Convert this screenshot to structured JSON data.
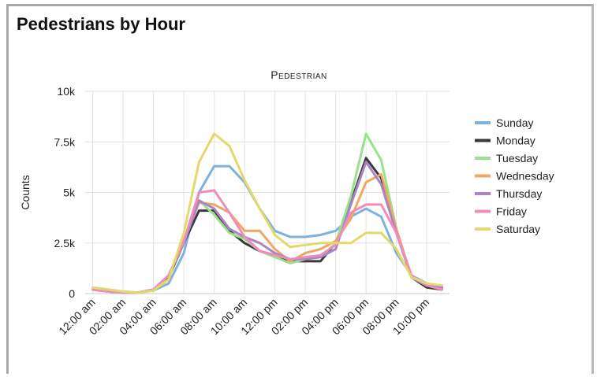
{
  "panel": {
    "title": "Pedestrians by Hour"
  },
  "chart_data": {
    "type": "line",
    "title": "Pedestrian",
    "xlabel": "",
    "ylabel": "Counts",
    "ylim": [
      0,
      10000
    ],
    "yticks": [
      0,
      2500,
      5000,
      7500,
      10000
    ],
    "ytick_labels": [
      "0",
      "2.5k",
      "5k",
      "7.5k",
      "10k"
    ],
    "x": [
      "12:00 am",
      "1:00 am",
      "2:00 am",
      "3:00 am",
      "4:00 am",
      "5:00 am",
      "6:00 am",
      "7:00 am",
      "8:00 am",
      "9:00 am",
      "10:00 am",
      "11:00 am",
      "12:00 pm",
      "1:00 pm",
      "2:00 pm",
      "3:00 pm",
      "4:00 pm",
      "5:00 pm",
      "6:00 pm",
      "7:00 pm",
      "8:00 pm",
      "9:00 pm",
      "10:00 pm",
      "11:00 pm"
    ],
    "xtick_labels": [
      "12:00 am",
      "02:00 am",
      "04:00 am",
      "06:00 am",
      "08:00 am",
      "10:00 am",
      "12:00 pm",
      "02:00 pm",
      "04:00 pm",
      "06:00 pm",
      "08:00 pm",
      "10:00 pm"
    ],
    "grid": true,
    "legend_position": "right",
    "series": [
      {
        "name": "Sunday",
        "color": "#7fb1e0",
        "values": [
          300,
          200,
          100,
          50,
          150,
          500,
          2000,
          5000,
          6300,
          6300,
          5500,
          4200,
          3100,
          2800,
          2800,
          2900,
          3100,
          3800,
          4200,
          3800,
          2000,
          900,
          500,
          300
        ]
      },
      {
        "name": "Monday",
        "color": "#3a3a3e",
        "values": [
          200,
          100,
          50,
          50,
          200,
          800,
          2500,
          4100,
          4100,
          3100,
          2500,
          2100,
          1900,
          1600,
          1600,
          1600,
          2500,
          4500,
          6700,
          5700,
          3000,
          800,
          300,
          200
        ]
      },
      {
        "name": "Tuesday",
        "color": "#98e38a",
        "values": [
          200,
          100,
          50,
          50,
          200,
          900,
          2500,
          4600,
          3900,
          3000,
          2700,
          2100,
          1800,
          1500,
          1700,
          1800,
          2500,
          4800,
          7900,
          6600,
          3200,
          800,
          400,
          300
        ]
      },
      {
        "name": "Wednesday",
        "color": "#f2a664",
        "values": [
          200,
          100,
          50,
          50,
          200,
          900,
          2600,
          4500,
          4400,
          4000,
          3100,
          3100,
          2200,
          1600,
          2000,
          2200,
          2600,
          3700,
          5500,
          5900,
          3200,
          800,
          400,
          300
        ]
      },
      {
        "name": "Thursday",
        "color": "#a985c5",
        "values": [
          200,
          100,
          50,
          50,
          200,
          900,
          2500,
          4600,
          4200,
          3200,
          2800,
          2500,
          2000,
          1700,
          1700,
          1800,
          2200,
          4400,
          6500,
          5400,
          3000,
          800,
          400,
          300
        ]
      },
      {
        "name": "Friday",
        "color": "#ef8cba",
        "values": [
          200,
          100,
          50,
          50,
          200,
          900,
          2600,
          5000,
          5100,
          4000,
          2800,
          2100,
          1900,
          1700,
          1800,
          1900,
          2400,
          4000,
          4400,
          4400,
          3000,
          900,
          400,
          200
        ]
      },
      {
        "name": "Saturday",
        "color": "#e3d96a",
        "values": [
          300,
          200,
          100,
          50,
          150,
          700,
          3000,
          6500,
          7900,
          7300,
          5600,
          4200,
          2900,
          2300,
          2400,
          2500,
          2500,
          2500,
          3000,
          3000,
          2200,
          800,
          500,
          400
        ]
      }
    ]
  }
}
